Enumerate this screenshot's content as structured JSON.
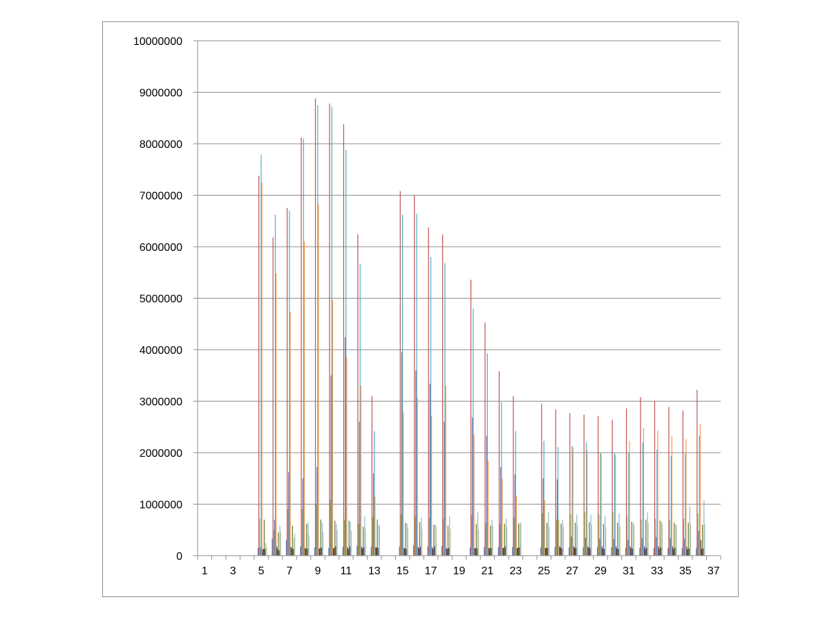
{
  "chart_data": {
    "type": "bar",
    "title": "",
    "xlabel": "",
    "ylabel": "",
    "ylim": [
      0,
      10000000
    ],
    "yticks": [
      "0",
      "1000000",
      "2000000",
      "3000000",
      "4000000",
      "5000000",
      "6000000",
      "7000000",
      "8000000",
      "9000000",
      "10000000"
    ],
    "categories": [
      "1",
      "2",
      "3",
      "4",
      "5",
      "6",
      "7",
      "8",
      "9",
      "10",
      "11",
      "12",
      "13",
      "14",
      "15",
      "16",
      "17",
      "18",
      "19",
      "20",
      "21",
      "22",
      "23",
      "24",
      "25",
      "26",
      "27",
      "28",
      "29",
      "30",
      "31",
      "32",
      "33",
      "34",
      "35",
      "36",
      "37"
    ],
    "category_labels_shown": [
      "1",
      "3",
      "5",
      "7",
      "9",
      "11",
      "13",
      "15",
      "17",
      "19",
      "21",
      "23",
      "25",
      "27",
      "29",
      "31",
      "33",
      "35",
      "37"
    ],
    "grid": "horizontal",
    "legend": "none",
    "series": [
      {
        "color": "#4f81bd",
        "values": [
          0,
          0,
          0,
          0,
          150000,
          330000,
          300000,
          180000,
          160000,
          150000,
          170000,
          190000,
          170000,
          0,
          180000,
          200000,
          180000,
          190000,
          0,
          160000,
          170000,
          170000,
          170000,
          0,
          160000,
          170000,
          160000,
          160000,
          160000,
          160000,
          150000,
          150000,
          150000,
          150000,
          150000,
          150000,
          0
        ]
      },
      {
        "color": "#c0504d",
        "values": [
          0,
          0,
          0,
          0,
          7380000,
          6180000,
          6750000,
          8120000,
          8880000,
          8780000,
          8380000,
          6240000,
          3100000,
          0,
          7080000,
          7000000,
          6380000,
          6240000,
          0,
          5360000,
          4530000,
          3580000,
          3100000,
          0,
          2950000,
          2840000,
          2770000,
          2740000,
          2710000,
          2640000,
          2860000,
          3080000,
          3010000,
          2890000,
          2820000,
          3220000,
          0
        ]
      },
      {
        "color": "#9bbb59",
        "values": [
          0,
          0,
          0,
          0,
          720000,
          500000,
          900000,
          900000,
          1000000,
          1080000,
          700000,
          620000,
          750000,
          0,
          800000,
          760000,
          740000,
          720000,
          0,
          790000,
          640000,
          620000,
          750000,
          0,
          820000,
          700000,
          800000,
          850000,
          800000,
          840000,
          760000,
          700000,
          720000,
          700000,
          720000,
          820000,
          0
        ]
      },
      {
        "color": "#8064a2",
        "values": [
          0,
          0,
          0,
          0,
          160000,
          700000,
          1620000,
          1500000,
          1720000,
          3500000,
          4240000,
          2600000,
          1600000,
          0,
          3950000,
          3600000,
          3340000,
          2600000,
          0,
          2680000,
          2330000,
          1720000,
          1580000,
          0,
          1500000,
          1480000,
          370000,
          350000,
          330000,
          320000,
          310000,
          340000,
          360000,
          340000,
          330000,
          480000,
          0
        ]
      },
      {
        "color": "#4bacc6",
        "values": [
          0,
          0,
          0,
          0,
          7780000,
          6620000,
          6700000,
          8100000,
          8750000,
          8720000,
          7880000,
          5670000,
          2420000,
          0,
          6620000,
          6640000,
          5800000,
          5680000,
          0,
          4800000,
          3930000,
          2980000,
          2420000,
          0,
          2230000,
          2110000,
          2130000,
          2200000,
          1990000,
          2000000,
          2000000,
          2200000,
          2060000,
          1930000,
          1980000,
          2330000,
          0
        ]
      },
      {
        "color": "#f79646",
        "values": [
          0,
          0,
          0,
          0,
          7240000,
          5480000,
          4740000,
          6100000,
          6820000,
          4960000,
          3860000,
          3300000,
          1150000,
          0,
          2780000,
          3060000,
          2720000,
          3300000,
          0,
          2340000,
          1840000,
          1500000,
          1160000,
          0,
          1080000,
          700000,
          2100000,
          2050000,
          1980000,
          1960000,
          2230000,
          2480000,
          2430000,
          2320000,
          2260000,
          2550000,
          0
        ]
      },
      {
        "color": "#2c4d75",
        "values": [
          0,
          0,
          0,
          0,
          120000,
          180000,
          170000,
          150000,
          140000,
          140000,
          160000,
          170000,
          160000,
          0,
          150000,
          170000,
          160000,
          150000,
          0,
          150000,
          150000,
          150000,
          150000,
          0,
          150000,
          180000,
          180000,
          180000,
          180000,
          180000,
          180000,
          180000,
          180000,
          180000,
          170000,
          300000,
          0
        ]
      },
      {
        "color": "#772c2a",
        "values": [
          0,
          0,
          0,
          0,
          130000,
          130000,
          140000,
          130000,
          140000,
          150000,
          130000,
          140000,
          160000,
          0,
          140000,
          140000,
          130000,
          130000,
          0,
          140000,
          140000,
          150000,
          150000,
          0,
          150000,
          160000,
          150000,
          150000,
          140000,
          140000,
          140000,
          130000,
          130000,
          130000,
          120000,
          130000,
          0
        ]
      },
      {
        "color": "#5f7530",
        "values": [
          0,
          0,
          0,
          0,
          700000,
          450000,
          580000,
          620000,
          700000,
          680000,
          680000,
          560000,
          700000,
          0,
          640000,
          650000,
          600000,
          580000,
          0,
          620000,
          580000,
          620000,
          620000,
          0,
          640000,
          620000,
          640000,
          650000,
          620000,
          640000,
          660000,
          700000,
          680000,
          640000,
          640000,
          600000,
          0
        ]
      },
      {
        "color": "#4d3b62",
        "values": [
          0,
          0,
          0,
          0,
          130000,
          100000,
          130000,
          140000,
          160000,
          180000,
          180000,
          160000,
          150000,
          0,
          130000,
          170000,
          180000,
          150000,
          0,
          140000,
          150000,
          180000,
          160000,
          0,
          150000,
          140000,
          150000,
          150000,
          130000,
          130000,
          140000,
          150000,
          160000,
          150000,
          140000,
          140000,
          0
        ]
      },
      {
        "color": "#93b7c9",
        "values": [
          0,
          0,
          0,
          0,
          250000,
          580000,
          350000,
          650000,
          640000,
          620000,
          660000,
          760000,
          600000,
          0,
          620000,
          740000,
          600000,
          760000,
          0,
          840000,
          700000,
          720000,
          650000,
          0,
          840000,
          700000,
          800000,
          800000,
          780000,
          820000,
          640000,
          840000,
          660000,
          600000,
          960000,
          1080000,
          0
        ]
      },
      {
        "color": "#b6c7a0",
        "values": [
          0,
          0,
          0,
          0,
          170000,
          460000,
          440000,
          400000,
          460000,
          500000,
          480000,
          520000,
          580000,
          0,
          540000,
          520000,
          580000,
          520000,
          0,
          510000,
          580000,
          560000,
          620000,
          0,
          560000,
          560000,
          600000,
          600000,
          560000,
          560000,
          600000,
          640000,
          620000,
          600000,
          610000,
          620000,
          0
        ]
      }
    ]
  }
}
